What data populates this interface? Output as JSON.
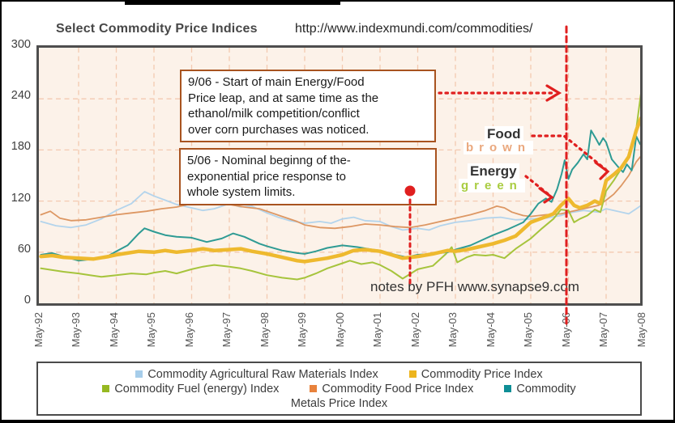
{
  "page": {
    "title": "Select Commodity Price Indices",
    "title_url": "http://www.indexmundi.com/commodities/",
    "notes_credit": "notes by PFH www.synapse9.com"
  },
  "annotations": {
    "box_906": "9/06 - Start of main Energy/Food\nPrice leap, and at same time as the\nethanol/milk competition/conflict\nover corn purchases was noticed.",
    "box_506": "5/06 - Nominal beginng of  the-\nexponential price response to\nwhole system limits.",
    "food_label": "Food",
    "food_color_word": "brown",
    "food_word_color": "#eaa87e",
    "energy_label": "Energy",
    "energy_color_word": "green",
    "energy_word_color": "#a9cc40",
    "accent_red": "#e01f1f"
  },
  "chart_data": {
    "type": "line",
    "title": "Select Commodity Price Indices",
    "x_labels": [
      "May-92",
      "May-93",
      "May-94",
      "May-95",
      "May-96",
      "May-97",
      "May-98",
      "May-99",
      "May-00",
      "May-01",
      "May-02",
      "May-03",
      "May-04",
      "May-05",
      "May-06",
      "May-07",
      "May-08"
    ],
    "x_unit": "years since May-92",
    "ylim": [
      0,
      300
    ],
    "yticks": [
      0,
      60,
      120,
      180,
      240,
      300
    ],
    "grid": true,
    "plot_bg": "#fcf2e9",
    "grid_color": "#f3c9b1",
    "series": [
      {
        "name": "Commodity Agricultural Raw Materials Index",
        "color": "#b3d4ec",
        "width": 1.8,
        "points": [
          [
            0,
            96
          ],
          [
            0.4,
            91
          ],
          [
            0.8,
            89
          ],
          [
            1.2,
            92
          ],
          [
            1.6,
            99
          ],
          [
            2,
            109
          ],
          [
            2.4,
            117
          ],
          [
            2.75,
            131
          ],
          [
            3,
            126
          ],
          [
            3.3,
            121
          ],
          [
            3.6,
            116
          ],
          [
            4,
            112
          ],
          [
            4.3,
            109
          ],
          [
            4.6,
            111
          ],
          [
            5,
            117
          ],
          [
            5.3,
            113
          ],
          [
            5.6,
            114
          ],
          [
            6,
            106
          ],
          [
            6.3,
            101
          ],
          [
            6.6,
            97
          ],
          [
            7,
            94
          ],
          [
            7.4,
            96
          ],
          [
            7.7,
            94
          ],
          [
            8,
            99
          ],
          [
            8.3,
            101
          ],
          [
            8.6,
            97
          ],
          [
            9,
            96
          ],
          [
            9.3,
            90
          ],
          [
            9.6,
            86
          ],
          [
            10,
            88
          ],
          [
            10.3,
            86
          ],
          [
            10.6,
            91
          ],
          [
            11,
            95
          ],
          [
            11.4,
            97
          ],
          [
            11.8,
            100
          ],
          [
            12.2,
            101
          ],
          [
            12.6,
            98
          ],
          [
            13,
            99
          ],
          [
            13.4,
            100
          ],
          [
            13.8,
            103
          ],
          [
            14,
            106
          ],
          [
            14.4,
            109
          ],
          [
            14.8,
            107
          ],
          [
            15,
            111
          ],
          [
            15.3,
            108
          ],
          [
            15.6,
            105
          ],
          [
            15.8,
            111
          ],
          [
            16,
            117
          ]
        ]
      },
      {
        "name": "Commodity Food Price Index",
        "color": "#dd9763",
        "width": 1.8,
        "points": [
          [
            0,
            104
          ],
          [
            0.25,
            108
          ],
          [
            0.5,
            100
          ],
          [
            0.8,
            97
          ],
          [
            1.2,
            98
          ],
          [
            1.6,
            101
          ],
          [
            2,
            104
          ],
          [
            2.4,
            106
          ],
          [
            2.8,
            108
          ],
          [
            3.2,
            111
          ],
          [
            3.6,
            113
          ],
          [
            4,
            117
          ],
          [
            4.2,
            121
          ],
          [
            4.5,
            116
          ],
          [
            5,
            116
          ],
          [
            5.4,
            113
          ],
          [
            5.8,
            111
          ],
          [
            6,
            108
          ],
          [
            6.4,
            102
          ],
          [
            6.8,
            96
          ],
          [
            7,
            92
          ],
          [
            7.4,
            89
          ],
          [
            7.8,
            88
          ],
          [
            8.2,
            90
          ],
          [
            8.6,
            93
          ],
          [
            9,
            92
          ],
          [
            9.4,
            90
          ],
          [
            9.8,
            89
          ],
          [
            10.2,
            92
          ],
          [
            10.6,
            96
          ],
          [
            11,
            100
          ],
          [
            11.4,
            104
          ],
          [
            11.8,
            109
          ],
          [
            12.1,
            114
          ],
          [
            12.3,
            112
          ],
          [
            12.5,
            107
          ],
          [
            12.8,
            103
          ],
          [
            13,
            102
          ],
          [
            13.4,
            104
          ],
          [
            13.8,
            105
          ],
          [
            14,
            107
          ],
          [
            14.4,
            111
          ],
          [
            14.8,
            115
          ],
          [
            15,
            121
          ],
          [
            15.2,
            128
          ],
          [
            15.4,
            138
          ],
          [
            15.6,
            150
          ],
          [
            15.8,
            166
          ],
          [
            16,
            177
          ]
        ]
      },
      {
        "name": "Commodity Fuel (energy) Index",
        "color": "#a6c43c",
        "width": 2,
        "points": [
          [
            0,
            41
          ],
          [
            0.3,
            39
          ],
          [
            0.6,
            37
          ],
          [
            1,
            35
          ],
          [
            1.3,
            33
          ],
          [
            1.6,
            31
          ],
          [
            2,
            33
          ],
          [
            2.4,
            35
          ],
          [
            2.8,
            34
          ],
          [
            3,
            36
          ],
          [
            3.3,
            38
          ],
          [
            3.6,
            35
          ],
          [
            4,
            40
          ],
          [
            4.3,
            43
          ],
          [
            4.6,
            45
          ],
          [
            5,
            43
          ],
          [
            5.3,
            41
          ],
          [
            5.6,
            38
          ],
          [
            6,
            33
          ],
          [
            6.4,
            30
          ],
          [
            6.8,
            28
          ],
          [
            7,
            30
          ],
          [
            7.3,
            35
          ],
          [
            7.6,
            41
          ],
          [
            8,
            47
          ],
          [
            8.2,
            50
          ],
          [
            8.5,
            46
          ],
          [
            8.8,
            48
          ],
          [
            9,
            45
          ],
          [
            9.3,
            38
          ],
          [
            9.6,
            29
          ],
          [
            10,
            40
          ],
          [
            10.4,
            44
          ],
          [
            10.75,
            58
          ],
          [
            10.9,
            66
          ],
          [
            11.05,
            48
          ],
          [
            11.3,
            54
          ],
          [
            11.5,
            57
          ],
          [
            11.8,
            56
          ],
          [
            12,
            57
          ],
          [
            12.3,
            53
          ],
          [
            12.6,
            64
          ],
          [
            13,
            76
          ],
          [
            13.3,
            88
          ],
          [
            13.6,
            99
          ],
          [
            13.8,
            110
          ],
          [
            14,
            109
          ],
          [
            14.15,
            95
          ],
          [
            14.3,
            99
          ],
          [
            14.5,
            103
          ],
          [
            14.7,
            110
          ],
          [
            14.85,
            107
          ],
          [
            15,
            132
          ],
          [
            15.2,
            144
          ],
          [
            15.4,
            158
          ],
          [
            15.6,
            172
          ],
          [
            15.8,
            205
          ],
          [
            15.92,
            245
          ],
          [
            16,
            227
          ]
        ]
      },
      {
        "name": "Commodity Metals Price Index",
        "color": "#2e9b94",
        "width": 2,
        "points": [
          [
            0,
            57
          ],
          [
            0.3,
            59
          ],
          [
            0.6,
            55
          ],
          [
            1,
            50
          ],
          [
            1.4,
            52
          ],
          [
            1.8,
            56
          ],
          [
            2,
            61
          ],
          [
            2.3,
            68
          ],
          [
            2.6,
            82
          ],
          [
            2.75,
            88
          ],
          [
            3,
            84
          ],
          [
            3.3,
            80
          ],
          [
            3.6,
            78
          ],
          [
            4,
            77
          ],
          [
            4.4,
            72
          ],
          [
            4.8,
            76
          ],
          [
            5.1,
            82
          ],
          [
            5.4,
            78
          ],
          [
            5.8,
            70
          ],
          [
            6,
            67
          ],
          [
            6.4,
            62
          ],
          [
            6.8,
            59
          ],
          [
            7,
            58
          ],
          [
            7.3,
            61
          ],
          [
            7.6,
            65
          ],
          [
            8,
            68
          ],
          [
            8.4,
            66
          ],
          [
            8.8,
            63
          ],
          [
            9,
            62
          ],
          [
            9.4,
            57
          ],
          [
            9.7,
            54
          ],
          [
            10,
            57
          ],
          [
            10.4,
            58
          ],
          [
            10.8,
            60
          ],
          [
            11,
            63
          ],
          [
            11.4,
            68
          ],
          [
            11.8,
            76
          ],
          [
            12,
            80
          ],
          [
            12.4,
            87
          ],
          [
            12.8,
            95
          ],
          [
            13,
            105
          ],
          [
            13.2,
            117
          ],
          [
            13.4,
            123
          ],
          [
            13.55,
            119
          ],
          [
            13.7,
            134
          ],
          [
            13.82,
            152
          ],
          [
            13.9,
            168
          ],
          [
            14,
            146
          ],
          [
            14.1,
            157
          ],
          [
            14.25,
            165
          ],
          [
            14.4,
            175
          ],
          [
            14.5,
            169
          ],
          [
            14.6,
            203
          ],
          [
            14.72,
            194
          ],
          [
            14.82,
            186
          ],
          [
            14.92,
            194
          ],
          [
            15,
            189
          ],
          [
            15.15,
            169
          ],
          [
            15.3,
            161
          ],
          [
            15.45,
            154
          ],
          [
            15.55,
            163
          ],
          [
            15.68,
            156
          ],
          [
            15.8,
            196
          ],
          [
            15.9,
            187
          ],
          [
            16,
            182
          ]
        ]
      },
      {
        "name": "Commodity Price Index",
        "color": "#eeb92e",
        "width": 4.5,
        "points": [
          [
            0,
            55
          ],
          [
            0.3,
            56
          ],
          [
            0.6,
            54
          ],
          [
            1,
            53
          ],
          [
            1.4,
            52
          ],
          [
            1.8,
            55
          ],
          [
            2,
            57
          ],
          [
            2.3,
            59
          ],
          [
            2.6,
            61
          ],
          [
            3,
            60
          ],
          [
            3.3,
            62
          ],
          [
            3.6,
            60
          ],
          [
            4,
            62
          ],
          [
            4.3,
            64
          ],
          [
            4.6,
            62
          ],
          [
            5,
            63
          ],
          [
            5.3,
            64
          ],
          [
            5.6,
            61
          ],
          [
            6,
            58
          ],
          [
            6.4,
            54
          ],
          [
            6.8,
            50
          ],
          [
            7,
            49
          ],
          [
            7.3,
            51
          ],
          [
            7.6,
            53
          ],
          [
            8,
            57
          ],
          [
            8.3,
            62
          ],
          [
            8.6,
            63
          ],
          [
            9,
            61
          ],
          [
            9.3,
            57
          ],
          [
            9.6,
            53
          ],
          [
            10,
            55
          ],
          [
            10.4,
            58
          ],
          [
            10.8,
            62
          ],
          [
            11,
            61
          ],
          [
            11.3,
            63
          ],
          [
            11.6,
            66
          ],
          [
            12,
            70
          ],
          [
            12.3,
            74
          ],
          [
            12.6,
            79
          ],
          [
            13,
            95
          ],
          [
            13.3,
            100
          ],
          [
            13.6,
            105
          ],
          [
            13.8,
            115
          ],
          [
            14,
            123
          ],
          [
            14.15,
            115
          ],
          [
            14.3,
            112
          ],
          [
            14.5,
            115
          ],
          [
            14.7,
            120
          ],
          [
            14.85,
            117
          ],
          [
            15,
            144
          ],
          [
            15.2,
            151
          ],
          [
            15.4,
            159
          ],
          [
            15.6,
            172
          ],
          [
            15.8,
            203
          ],
          [
            15.92,
            217
          ],
          [
            16,
            220
          ]
        ]
      }
    ],
    "legend": {
      "rows": [
        [
          {
            "color": "#a6cdea",
            "label": "Commodity Agricultural Raw Materials Index"
          },
          {
            "color": "#edb51e",
            "label": "Commodity Price Index"
          }
        ],
        [
          {
            "color": "#96b821",
            "label": "Commodity Fuel (energy) Index"
          },
          {
            "color": "#e8823c",
            "label": "Commodity Food Price Index"
          },
          {
            "color": "#0e8e96",
            "label": "Commodity"
          }
        ]
      ],
      "continuation": "Metals Price Index"
    }
  }
}
